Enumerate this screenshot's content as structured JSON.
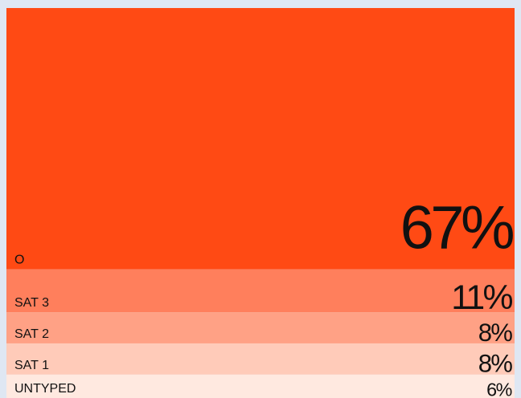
{
  "chart_data": {
    "type": "stacked-band",
    "categories": [
      "O",
      "SAT 3",
      "SAT 2",
      "SAT 1",
      "UNTYPED"
    ],
    "values": [
      67,
      11,
      8,
      8,
      6
    ],
    "value_labels": [
      "67%",
      "11%",
      "8%",
      "8%",
      "6%"
    ],
    "colors": [
      "#ff4a14",
      "#ff7f5c",
      "#ffa185",
      "#ffcbb9",
      "#ffe9e0"
    ]
  }
}
